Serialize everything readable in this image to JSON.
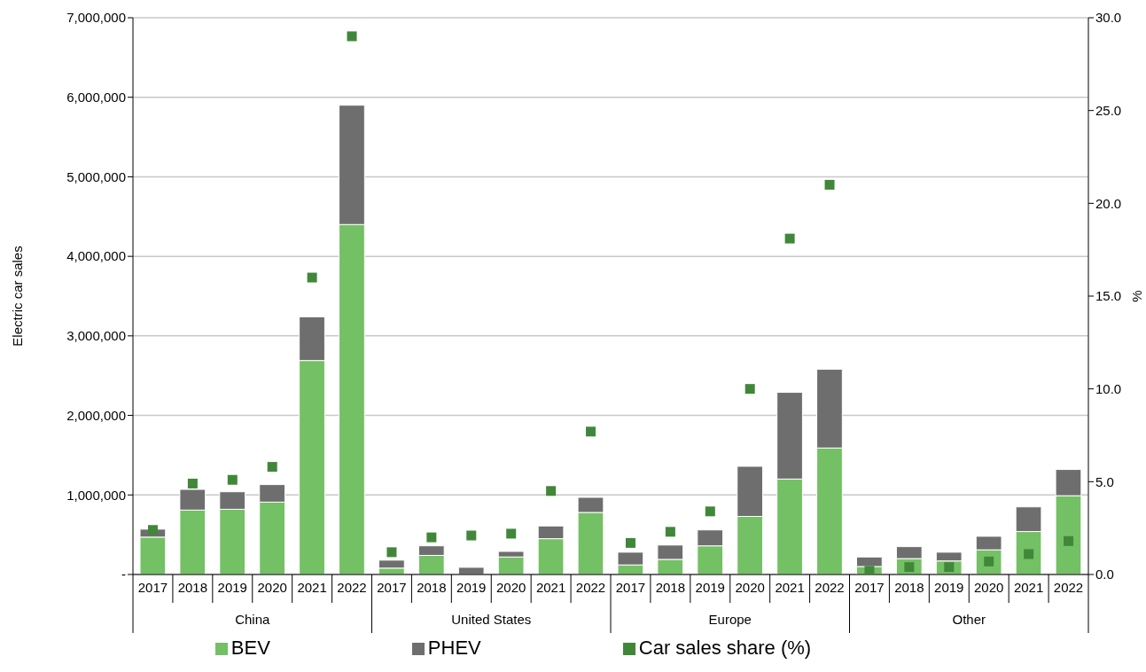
{
  "chart_data": {
    "type": "bar",
    "stacked": true,
    "ylabel": "Electric car sales",
    "y2label": "%",
    "categories": [
      "2017",
      "2018",
      "2019",
      "2020",
      "2021",
      "2022",
      "2017",
      "2018",
      "2019",
      "2020",
      "2021",
      "2022",
      "2017",
      "2018",
      "2019",
      "2020",
      "2021",
      "2022",
      "2017",
      "2018",
      "2019",
      "2020",
      "2021",
      "2022"
    ],
    "annotations": [
      "China",
      "United States",
      "Europe",
      "Other"
    ],
    "series": [
      {
        "name": "BEV",
        "color": "#74c064",
        "values": [
          470000,
          810000,
          820000,
          910000,
          2690000,
          4400000,
          80000,
          240000,
          null,
          220000,
          450000,
          780000,
          120000,
          190000,
          360000,
          730000,
          1200000,
          1590000,
          100000,
          200000,
          170000,
          310000,
          540000,
          990000
        ]
      },
      {
        "name": "PHEV",
        "color": "#6e6e6e",
        "values": [
          100000,
          260000,
          220000,
          220000,
          550000,
          1500000,
          100000,
          120000,
          90000,
          70000,
          160000,
          190000,
          160000,
          180000,
          200000,
          630000,
          1090000,
          990000,
          120000,
          150000,
          110000,
          170000,
          310000,
          330000
        ]
      },
      {
        "name": "Car sales share (%)",
        "type": "scatter",
        "axis": "y2",
        "color": "#41873a",
        "values": [
          2.4,
          4.9,
          5.1,
          5.8,
          16.0,
          29.0,
          1.2,
          2.0,
          2.1,
          2.2,
          4.5,
          7.7,
          1.7,
          2.3,
          3.4,
          10.0,
          18.1,
          21.0,
          0.2,
          0.4,
          0.4,
          0.7,
          1.1,
          1.8
        ]
      }
    ],
    "ylim": [
      0,
      7000000
    ],
    "yticks": [
      {
        "value": 0,
        "label": "-"
      },
      {
        "value": 1000000,
        "label": "1,000,000"
      },
      {
        "value": 2000000,
        "label": "2,000,000"
      },
      {
        "value": 3000000,
        "label": "3,000,000"
      },
      {
        "value": 4000000,
        "label": "4,000,000"
      },
      {
        "value": 5000000,
        "label": "5,000,000"
      },
      {
        "value": 6000000,
        "label": "6,000,000"
      },
      {
        "value": 7000000,
        "label": "7,000,000"
      }
    ],
    "y2lim": [
      0,
      30
    ],
    "y2ticks": [
      {
        "value": 0,
        "label": "0.0"
      },
      {
        "value": 5,
        "label": "5.0"
      },
      {
        "value": 10,
        "label": "10.0"
      },
      {
        "value": 15,
        "label": "15.0"
      },
      {
        "value": 20,
        "label": "20.0"
      },
      {
        "value": 25,
        "label": "25.0"
      },
      {
        "value": 30,
        "label": "30.0"
      }
    ],
    "grid": "y",
    "legend": "bottom",
    "marker": "square"
  }
}
